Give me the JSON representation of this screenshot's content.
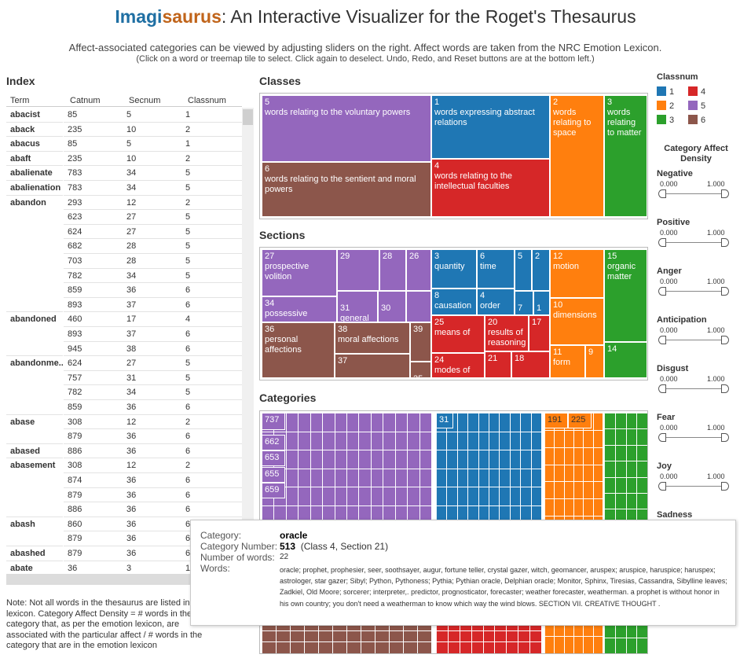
{
  "header": {
    "title_part1": "Imagi",
    "title_part2": "saurus",
    "title_rest": ": An Interactive Visualizer for the Roget's Thesaurus",
    "subtitle1": "Affect-associated categories can be viewed by adjusting sliders on the right. Affect words are taken from the NRC Emotion Lexicon.",
    "subtitle2": "(Click on a word or treemap tile to select. Click again to deselect. Undo, Redo, and Reset buttons are at the bottom left.)"
  },
  "index": {
    "title": "Index",
    "columns": [
      "Term",
      "Catnum",
      "Secnum",
      "Classnum"
    ],
    "rows": [
      {
        "term": "abacist",
        "cat": "85",
        "sec": "5",
        "cls": "1"
      },
      {
        "term": "aback",
        "cat": "235",
        "sec": "10",
        "cls": "2"
      },
      {
        "term": "abacus",
        "cat": "85",
        "sec": "5",
        "cls": "1"
      },
      {
        "term": "abaft",
        "cat": "235",
        "sec": "10",
        "cls": "2"
      },
      {
        "term": "abalienate",
        "cat": "783",
        "sec": "34",
        "cls": "5"
      },
      {
        "term": "abalienation",
        "cat": "783",
        "sec": "34",
        "cls": "5"
      },
      {
        "term": "abandon",
        "cat": "293",
        "sec": "12",
        "cls": "2"
      },
      {
        "term": "",
        "cat": "623",
        "sec": "27",
        "cls": "5"
      },
      {
        "term": "",
        "cat": "624",
        "sec": "27",
        "cls": "5"
      },
      {
        "term": "",
        "cat": "682",
        "sec": "28",
        "cls": "5"
      },
      {
        "term": "",
        "cat": "703",
        "sec": "28",
        "cls": "5"
      },
      {
        "term": "",
        "cat": "782",
        "sec": "34",
        "cls": "5"
      },
      {
        "term": "",
        "cat": "859",
        "sec": "36",
        "cls": "6"
      },
      {
        "term": "",
        "cat": "893",
        "sec": "37",
        "cls": "6"
      },
      {
        "term": "abandoned",
        "cat": "460",
        "sec": "17",
        "cls": "4"
      },
      {
        "term": "",
        "cat": "893",
        "sec": "37",
        "cls": "6"
      },
      {
        "term": "",
        "cat": "945",
        "sec": "38",
        "cls": "6"
      },
      {
        "term": "abandonme..",
        "cat": "624",
        "sec": "27",
        "cls": "5"
      },
      {
        "term": "",
        "cat": "757",
        "sec": "31",
        "cls": "5"
      },
      {
        "term": "",
        "cat": "782",
        "sec": "34",
        "cls": "5"
      },
      {
        "term": "",
        "cat": "859",
        "sec": "36",
        "cls": "6"
      },
      {
        "term": "abase",
        "cat": "308",
        "sec": "12",
        "cls": "2"
      },
      {
        "term": "",
        "cat": "879",
        "sec": "36",
        "cls": "6"
      },
      {
        "term": "abased",
        "cat": "886",
        "sec": "36",
        "cls": "6"
      },
      {
        "term": "abasement",
        "cat": "308",
        "sec": "12",
        "cls": "2"
      },
      {
        "term": "",
        "cat": "874",
        "sec": "36",
        "cls": "6"
      },
      {
        "term": "",
        "cat": "879",
        "sec": "36",
        "cls": "6"
      },
      {
        "term": "",
        "cat": "886",
        "sec": "36",
        "cls": "6"
      },
      {
        "term": "abash",
        "cat": "860",
        "sec": "36",
        "cls": "6"
      },
      {
        "term": "",
        "cat": "879",
        "sec": "36",
        "cls": "6"
      },
      {
        "term": "abashed",
        "cat": "879",
        "sec": "36",
        "cls": "6"
      },
      {
        "term": "abate",
        "cat": "36",
        "sec": "3",
        "cls": "1"
      }
    ]
  },
  "note": "Note: Not all words in the thesaurus are listed in the lexicon. Category Affect Density = # words in the category that, as per the emotion lexicon, are associated with the particular affect / # words in the category that are in the emotion lexicon",
  "classes": {
    "title": "Classes",
    "tiles": [
      {
        "num": "5",
        "label": "words relating to the voluntary powers"
      },
      {
        "num": "6",
        "label": "words relating to the sentient and moral powers"
      },
      {
        "num": "1",
        "label": "words expressing abstract relations"
      },
      {
        "num": "4",
        "label": "words relating to the intellectual faculties"
      },
      {
        "num": "2",
        "label": "words relating to space"
      },
      {
        "num": "3",
        "label": "words relating to matter"
      }
    ]
  },
  "sections": {
    "title": "Sections",
    "tiles": [
      {
        "num": "27",
        "label": "prospective volition"
      },
      {
        "num": "29",
        "label": ""
      },
      {
        "num": "28",
        "label": ""
      },
      {
        "num": "26",
        "label": ""
      },
      {
        "num": "34",
        "label": "possessive"
      },
      {
        "num": "31",
        "label": "general"
      },
      {
        "num": "30",
        "label": ""
      },
      {
        "num": "36",
        "label": "personal affections"
      },
      {
        "num": "38",
        "label": "moral affections"
      },
      {
        "num": "39",
        "label": ""
      },
      {
        "num": "37",
        "label": ""
      },
      {
        "num": "35",
        "label": ""
      },
      {
        "num": "3",
        "label": "quantity"
      },
      {
        "num": "6",
        "label": "time"
      },
      {
        "num": "5",
        "label": ""
      },
      {
        "num": "2",
        "label": ""
      },
      {
        "num": "8",
        "label": "causation"
      },
      {
        "num": "4",
        "label": "order"
      },
      {
        "num": "7",
        "label": ""
      },
      {
        "num": "1",
        "label": ""
      },
      {
        "num": "25",
        "label": "means of"
      },
      {
        "num": "20",
        "label": "results of reasoning"
      },
      {
        "num": "17",
        "label": ""
      },
      {
        "num": "24",
        "label": "modes of"
      },
      {
        "num": "21",
        "label": ""
      },
      {
        "num": "18",
        "label": ""
      },
      {
        "num": "12",
        "label": "motion"
      },
      {
        "num": "10",
        "label": "dimensions"
      },
      {
        "num": "11",
        "label": "form"
      },
      {
        "num": "9",
        "label": ""
      },
      {
        "num": "15",
        "label": "organic matter"
      },
      {
        "num": "14",
        "label": ""
      }
    ]
  },
  "categories": {
    "title": "Categories",
    "labels": [
      "737",
      "662",
      "653",
      "655",
      "659",
      "31",
      "191",
      "225"
    ]
  },
  "legend": {
    "title": "Classnum",
    "items": [
      {
        "label": "1",
        "color": "#1f77b4"
      },
      {
        "label": "2",
        "color": "#ff7f0e"
      },
      {
        "label": "3",
        "color": "#2ca02c"
      },
      {
        "label": "4",
        "color": "#d62728"
      },
      {
        "label": "5",
        "color": "#9467bd"
      },
      {
        "label": "6",
        "color": "#8c564b"
      }
    ],
    "density_title": "Category Affect Density"
  },
  "sliders": [
    {
      "name": "Negative",
      "min": "0.000",
      "max": "1.000"
    },
    {
      "name": "Positive",
      "min": "0.000",
      "max": "1.000"
    },
    {
      "name": "Anger",
      "min": "0.000",
      "max": "1.000"
    },
    {
      "name": "Anticipation",
      "min": "0.000",
      "max": "1.000"
    },
    {
      "name": "Disgust",
      "min": "0.000",
      "max": "1.000"
    },
    {
      "name": "Fear",
      "min": "0.000",
      "max": "1.000"
    },
    {
      "name": "Joy",
      "min": "0.000",
      "max": "1.000"
    },
    {
      "name": "Sadness",
      "min": "",
      "max": ""
    }
  ],
  "tooltip": {
    "category_label": "Category:",
    "category_value": "oracle",
    "catnum_label": "Category Number:",
    "catnum_value": "513",
    "catnum_extra": "(Class 4, Section 21)",
    "nwords_label": "Number of words:",
    "nwords_value": "22",
    "words_label": "Words:",
    "words": "oracle; prophet, prophesier, seer, soothsayer, augur, fortune teller, crystal gazer, witch, geomancer, aruspex; aruspice, haruspice; haruspex; astrologer, star gazer; Sibyl; Python, Pythoness;  Pythia; Pythian oracle, Delphian oracle; Monitor, Sphinx, Tiresias,  Cassandra, Sibylline leaves; Zadkiel, Old Moore; sorcerer;  interpreter,. predictor,  prognosticator, forecaster; weather forecaster, weatherman. a prophet is without honor in his own country; you don't need a weatherman to know which way the wind blows. SECTION VII. CREATIVE THOUGHT ."
  }
}
